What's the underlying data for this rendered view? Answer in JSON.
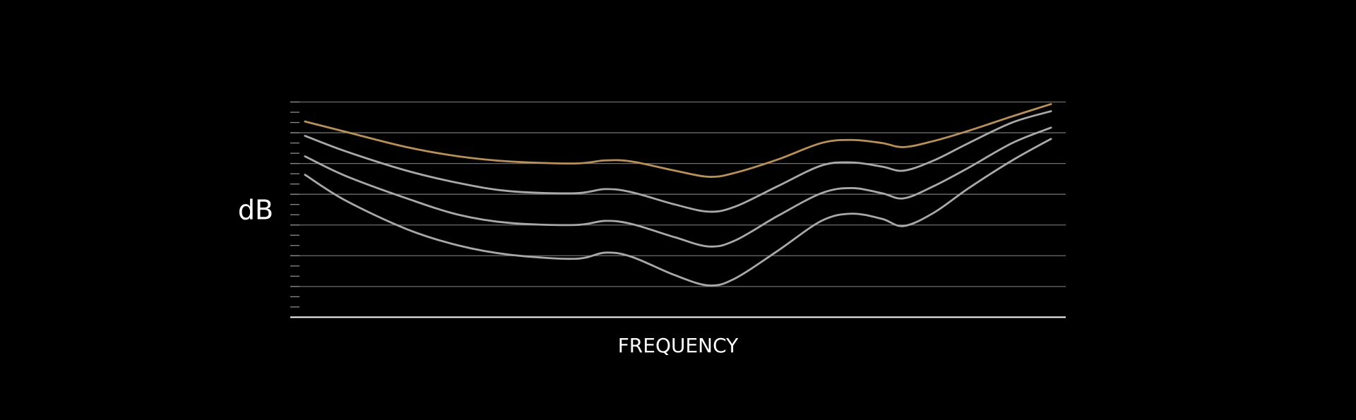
{
  "chart_data": {
    "type": "line",
    "y_label": "dB",
    "x_label": "FREQUENCY",
    "xlim": [
      0,
      100
    ],
    "ylim": [
      0,
      21
    ],
    "yticks": [
      1,
      2,
      3,
      4,
      5,
      6,
      7,
      8,
      9,
      10,
      11,
      12,
      13,
      14,
      15,
      16,
      17,
      18,
      19,
      20,
      21
    ],
    "grid_lines": [
      3,
      6,
      9,
      12,
      15,
      18,
      21
    ],
    "x": [
      1.9,
      7.1,
      15,
      21.7,
      28.3,
      36.7,
      40.6,
      44,
      49.6,
      54,
      57.4,
      62.9,
      68.5,
      72.4,
      76.3,
      79.1,
      83,
      87.5,
      93.1,
      98.1
    ],
    "series": [
      {
        "color": "#b8905e",
        "values": [
          19.1,
          18.1,
          16.6,
          15.7,
          15.2,
          15.0,
          15.3,
          15.2,
          14.3,
          13.7,
          14.1,
          15.4,
          17.0,
          17.3,
          17.0,
          16.6,
          17.2,
          18.2,
          19.6,
          20.8
        ]
      },
      {
        "color": "#a9a9a9",
        "values": [
          17.7,
          16.2,
          14.3,
          13.1,
          12.3,
          12.1,
          12.5,
          12.2,
          11.0,
          10.3,
          10.8,
          12.8,
          14.8,
          15.1,
          14.7,
          14.3,
          15.3,
          17.0,
          19.0,
          20.1
        ]
      },
      {
        "color": "#a9a9a9",
        "values": [
          15.7,
          13.8,
          11.6,
          10.0,
          9.2,
          9.0,
          9.4,
          9.1,
          7.8,
          6.9,
          7.5,
          9.9,
          12.1,
          12.6,
          12.1,
          11.6,
          12.8,
          14.6,
          17.0,
          18.5
        ]
      },
      {
        "color": "#a9a9a9",
        "values": [
          13.9,
          11.4,
          8.6,
          7.0,
          6.1,
          5.7,
          6.3,
          5.9,
          4.1,
          3.1,
          3.8,
          6.5,
          9.4,
          10.1,
          9.6,
          8.9,
          10.2,
          12.6,
          15.3,
          17.4
        ]
      }
    ]
  }
}
